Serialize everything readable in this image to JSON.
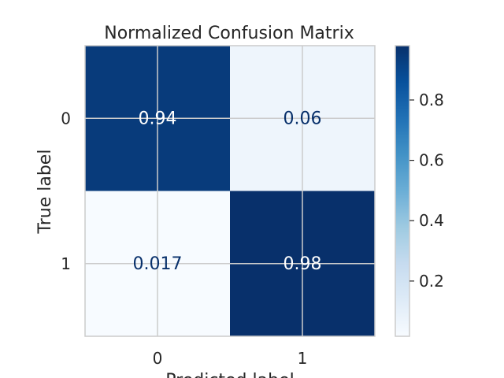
{
  "chart_data": {
    "type": "heatmap",
    "title": "Normalized Confusion Matrix",
    "xlabel": "Predicted label",
    "ylabel": "True label",
    "x_categories": [
      "0",
      "1"
    ],
    "y_categories": [
      "0",
      "1"
    ],
    "values": [
      [
        0.94,
        0.06
      ],
      [
        0.017,
        0.98
      ]
    ],
    "value_labels": [
      [
        "0.94",
        "0.06"
      ],
      [
        "0.017",
        "0.98"
      ]
    ],
    "colormap": "Blues",
    "colorbar": {
      "ticks": [
        0.2,
        0.4,
        0.6,
        0.8
      ],
      "tick_labels": [
        "0.2",
        "0.4",
        "0.6",
        "0.8"
      ],
      "range": [
        0.017,
        0.98
      ]
    },
    "grid": true
  }
}
